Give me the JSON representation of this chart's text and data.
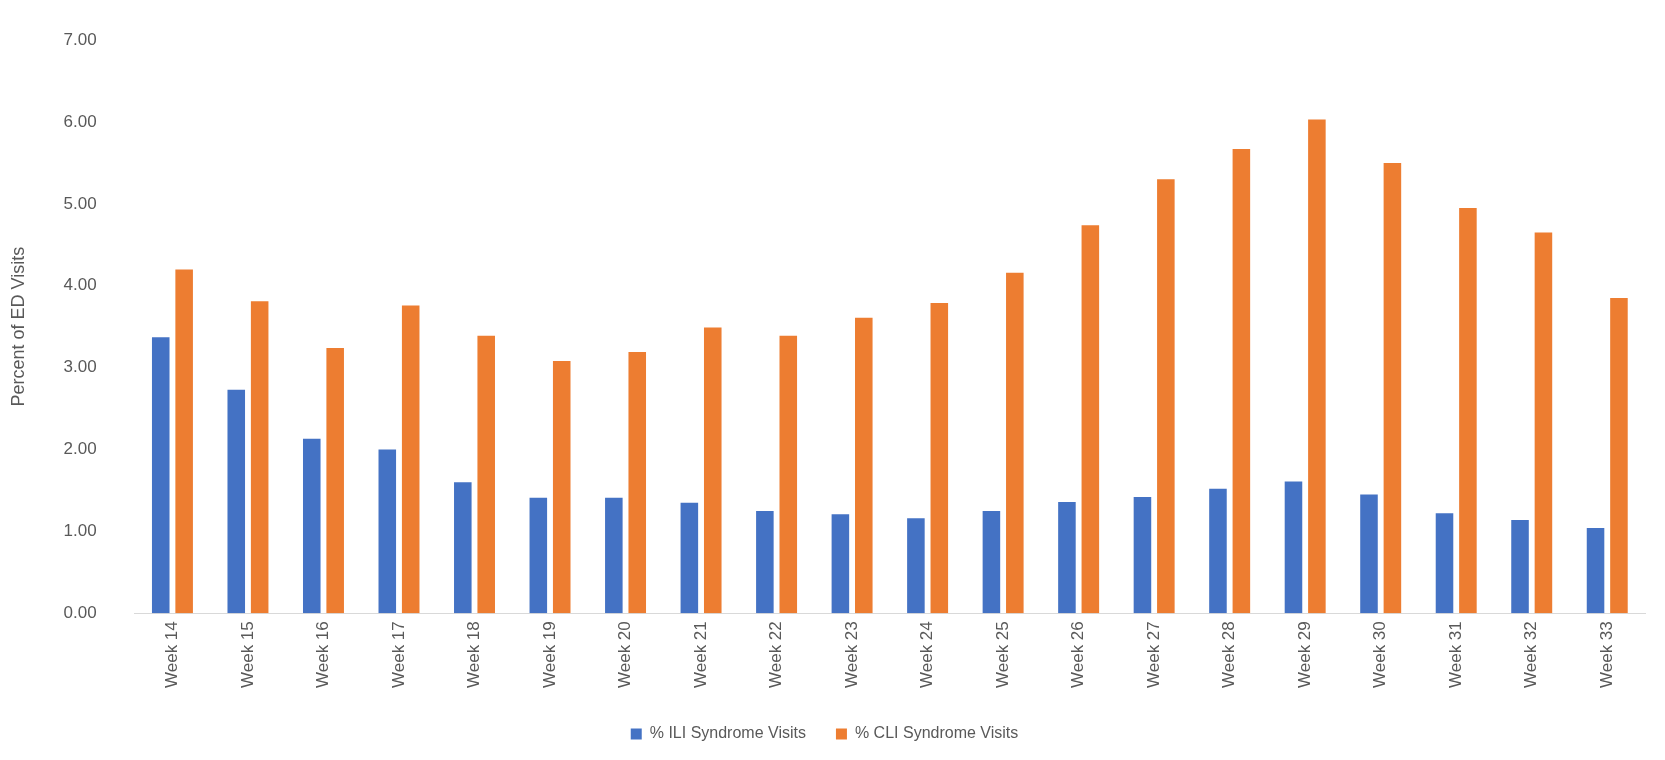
{
  "chart_data": {
    "type": "bar",
    "ylabel": "Percent of ED Visits",
    "categories": [
      "Week 14",
      "Week 15",
      "Week 16",
      "Week 17",
      "Week 18",
      "Week 19",
      "Week 20",
      "Week 21",
      "Week 22",
      "Week 23",
      "Week 24",
      "Week 25",
      "Week 26",
      "Week 27",
      "Week 28",
      "Week 29",
      "Week 30",
      "Week 31",
      "Week 32",
      "Week 33"
    ],
    "series": [
      {
        "name": "% ILI Syndrome Visits",
        "color": "#4472c4",
        "values": [
          3.37,
          2.73,
          2.13,
          2.0,
          1.6,
          1.41,
          1.41,
          1.35,
          1.25,
          1.21,
          1.16,
          1.25,
          1.36,
          1.42,
          1.52,
          1.61,
          1.45,
          1.22,
          1.14,
          1.04
        ]
      },
      {
        "name": "% CLI Syndrome Visits",
        "color": "#ed7d31",
        "values": [
          4.2,
          3.81,
          3.24,
          3.76,
          3.39,
          3.08,
          3.19,
          3.49,
          3.39,
          3.61,
          3.79,
          4.16,
          4.74,
          5.3,
          5.67,
          6.03,
          5.5,
          4.95,
          4.65,
          3.85
        ]
      }
    ],
    "ylim": [
      0,
      7
    ],
    "yticks": [
      {
        "value": 0,
        "label": "0.00"
      },
      {
        "value": 1,
        "label": "1.00"
      },
      {
        "value": 2,
        "label": "2.00"
      },
      {
        "value": 3,
        "label": "3.00"
      },
      {
        "value": 4,
        "label": "4.00"
      },
      {
        "value": 5,
        "label": "5.00"
      },
      {
        "value": 6,
        "label": "6.00"
      },
      {
        "value": 7,
        "label": "7.00"
      }
    ],
    "grid": false,
    "legend": "bottom"
  }
}
